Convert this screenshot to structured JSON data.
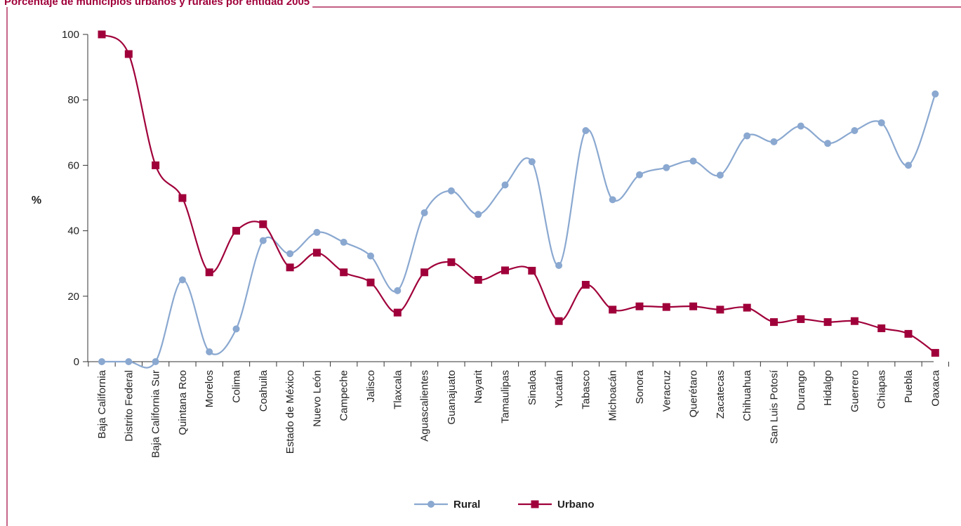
{
  "chart_data": {
    "type": "line",
    "title": "Porcentaje de municipios urbanos y rurales por entidad 2005",
    "ylabel": "%",
    "xlabel": "",
    "ylim": [
      0,
      100
    ],
    "yticks": [
      0,
      20,
      40,
      60,
      80,
      100
    ],
    "legend_position": "bottom-center",
    "grid": false,
    "categories": [
      "Baja California",
      "Distrito Federal",
      "Baja California Sur",
      "Quintana Roo",
      "Morelos",
      "Colima",
      "Coahuila",
      "Estado de México",
      "Nuevo León",
      "Campeche",
      "Jalisco",
      "Tlaxcala",
      "Aguascalientes",
      "Guanajuato",
      "Nayarit",
      "Tamaulipas",
      "Sinaloa",
      "Yucatán",
      "Tabasco",
      "Michoacán",
      "Sonora",
      "Veracruz",
      "Querétaro",
      "Zacatecas",
      "Chihuahua",
      "San Luis Potosí",
      "Durango",
      "Hidalgo",
      "Guerrero",
      "Chiapas",
      "Puebla",
      "Oaxaca"
    ],
    "series": [
      {
        "name": "Rural",
        "color": "#8aa8d0",
        "marker": "circle",
        "values": [
          0,
          0,
          0,
          25,
          3,
          10,
          37,
          33,
          39.5,
          36.5,
          32.3,
          21.7,
          45.5,
          52.2,
          45,
          54,
          61.1,
          29.4,
          70.6,
          49.5,
          57.1,
          59.3,
          61.3,
          57,
          69,
          67.2,
          72,
          66.7,
          70.6,
          73,
          60,
          81.8
        ]
      },
      {
        "name": "Urbano",
        "color": "#a0003a",
        "marker": "square",
        "values": [
          100,
          94,
          60,
          50,
          27.3,
          40,
          42,
          28.8,
          33.3,
          27.3,
          24.2,
          15,
          27.3,
          30.4,
          25,
          27.9,
          27.8,
          12.4,
          23.5,
          15.9,
          16.9,
          16.7,
          16.9,
          15.9,
          16.5,
          12.1,
          13,
          12.1,
          12.4,
          10.2,
          8.5,
          2.7
        ]
      }
    ]
  }
}
